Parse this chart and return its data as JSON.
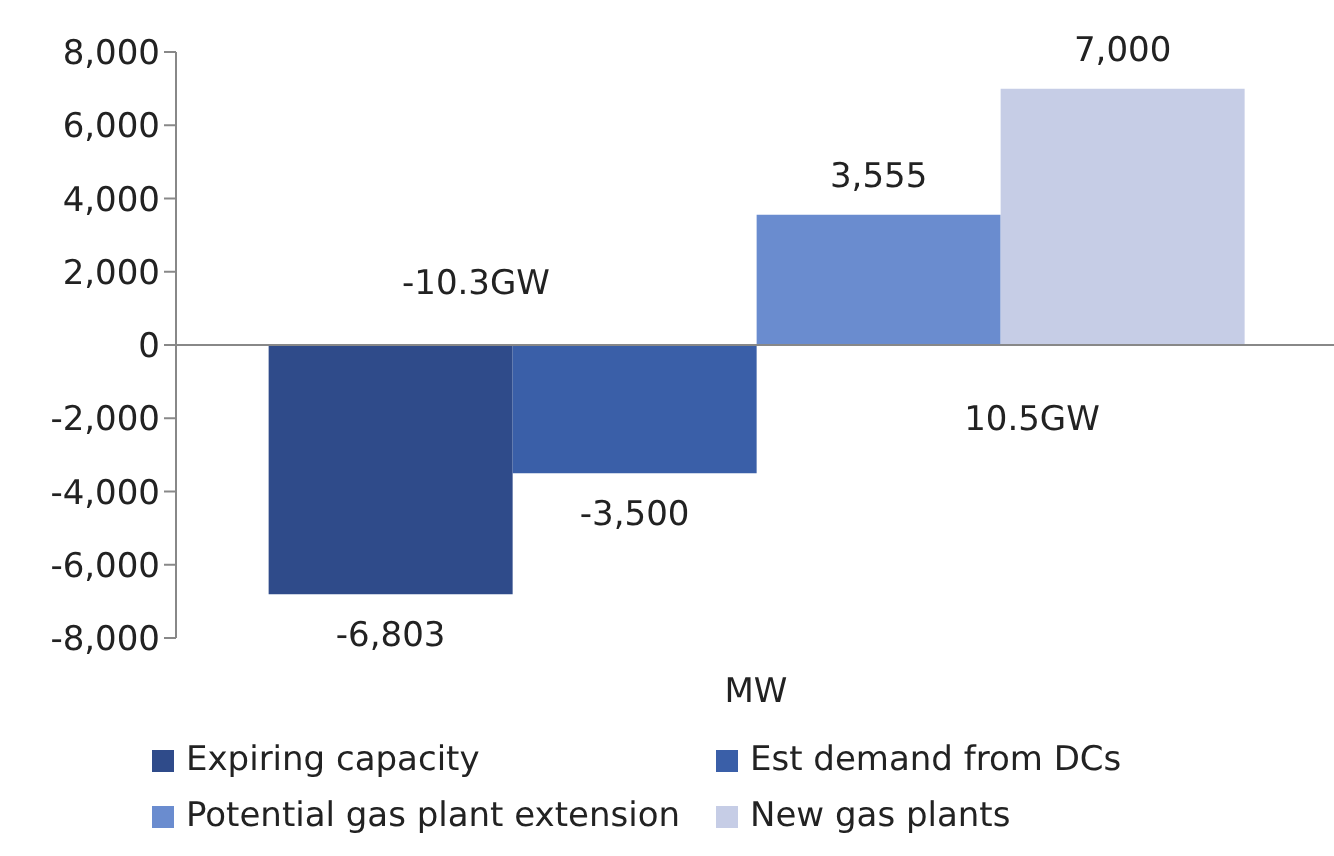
{
  "chart_data": {
    "type": "bar",
    "xlabel": "MW",
    "categories": [
      null
    ],
    "series": [
      {
        "name": "Expiring capacity",
        "color": "#2f4b8a",
        "values": [
          -6803
        ],
        "value_labels": [
          "-6,803"
        ]
      },
      {
        "name": "Est demand from DCs",
        "color": "#3a5fa8",
        "values": [
          -3500
        ],
        "value_labels": [
          "-3,500"
        ]
      },
      {
        "name": "Potential gas plant extension",
        "color": "#6a8ccf",
        "values": [
          3555
        ],
        "value_labels": [
          "3,555"
        ]
      },
      {
        "name": "New gas plants",
        "color": "#c6cde6",
        "values": [
          7000
        ],
        "value_labels": [
          "7,000"
        ]
      }
    ],
    "ylim": [
      -8000,
      8000
    ],
    "yticks": [
      {
        "value": -8000,
        "label": "-8,000"
      },
      {
        "value": -6000,
        "label": "-6,000"
      },
      {
        "value": -4000,
        "label": "-4,000"
      },
      {
        "value": -2000,
        "label": "-2,000"
      },
      0,
      {
        "value": 2000,
        "label": "2,000"
      },
      {
        "value": 4000,
        "label": "4,000"
      },
      {
        "value": 6000,
        "label": "6,000"
      },
      {
        "value": 8000,
        "label": "8,000"
      }
    ],
    "legend": "bottom",
    "annotations": [
      "-10.3GW",
      "10.5GW"
    ]
  }
}
